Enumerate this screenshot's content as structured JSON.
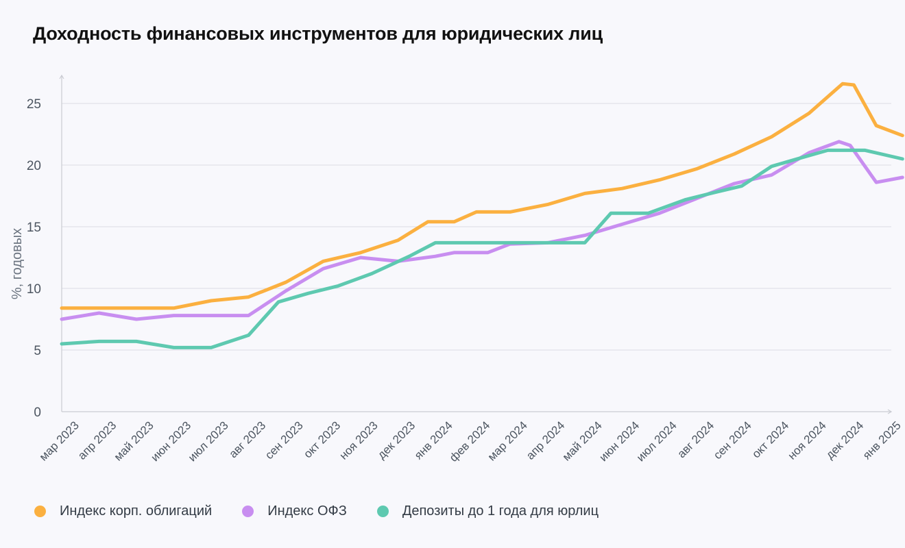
{
  "title": "Доходность финансовых инструментов для юридических лиц",
  "chart_data": {
    "type": "line",
    "ylabel": "%, годовых",
    "ylim": [
      0,
      27
    ],
    "yticks": [
      0,
      5,
      10,
      15,
      20,
      25
    ],
    "grid": true,
    "legend_position": "bottom",
    "categories": [
      "мар 2023",
      "апр 2023",
      "май 2023",
      "июн 2023",
      "июл 2023",
      "авг 2023",
      "сен 2023",
      "окт 2023",
      "ноя 2023",
      "дек 2023",
      "янв 2024",
      "фев 2024",
      "мар 2024",
      "апр 2024",
      "май 2024",
      "июн 2024",
      "июл 2024",
      "авг 2024",
      "сен 2024",
      "окт 2024",
      "ноя 2024",
      "дек 2024",
      "янв 2025"
    ],
    "series": [
      {
        "name": "Индекс корп. облигаций",
        "color": "#fbb040",
        "points": [
          [
            0,
            8.4
          ],
          [
            1,
            8.4
          ],
          [
            2,
            8.4
          ],
          [
            3,
            8.4
          ],
          [
            4,
            9.0
          ],
          [
            5,
            9.3
          ],
          [
            6,
            10.5
          ],
          [
            7,
            12.2
          ],
          [
            8,
            12.9
          ],
          [
            9,
            13.9
          ],
          [
            9.8,
            15.4
          ],
          [
            10.5,
            15.4
          ],
          [
            11.1,
            16.2
          ],
          [
            12,
            16.2
          ],
          [
            13,
            16.8
          ],
          [
            14,
            17.7
          ],
          [
            15,
            18.1
          ],
          [
            16,
            18.8
          ],
          [
            17,
            19.7
          ],
          [
            18,
            20.9
          ],
          [
            19,
            22.3
          ],
          [
            20,
            24.2
          ],
          [
            20.9,
            26.6
          ],
          [
            21.2,
            26.5
          ],
          [
            21.8,
            23.2
          ],
          [
            22.5,
            22.4
          ]
        ]
      },
      {
        "name": "Индекс ОФЗ",
        "color": "#c88ef0",
        "points": [
          [
            0,
            7.5
          ],
          [
            1,
            8.0
          ],
          [
            2,
            7.5
          ],
          [
            3,
            7.8
          ],
          [
            4,
            7.8
          ],
          [
            5,
            7.8
          ],
          [
            6,
            9.8
          ],
          [
            7,
            11.6
          ],
          [
            8,
            12.5
          ],
          [
            9,
            12.2
          ],
          [
            10,
            12.6
          ],
          [
            10.5,
            12.9
          ],
          [
            11.4,
            12.9
          ],
          [
            12,
            13.6
          ],
          [
            13,
            13.7
          ],
          [
            14,
            14.3
          ],
          [
            15,
            15.2
          ],
          [
            16,
            16.1
          ],
          [
            17,
            17.3
          ],
          [
            18,
            18.5
          ],
          [
            19,
            19.2
          ],
          [
            20,
            21.0
          ],
          [
            20.8,
            21.9
          ],
          [
            21.1,
            21.6
          ],
          [
            21.8,
            18.6
          ],
          [
            22.5,
            19.0
          ]
        ]
      },
      {
        "name": "Депозиты до 1 года для юрлиц",
        "color": "#5ec9b0",
        "points": [
          [
            0,
            5.5
          ],
          [
            1,
            5.7
          ],
          [
            2,
            5.7
          ],
          [
            3,
            5.2
          ],
          [
            4,
            5.2
          ],
          [
            5,
            6.2
          ],
          [
            5.8,
            8.9
          ],
          [
            6.6,
            9.6
          ],
          [
            7.4,
            10.2
          ],
          [
            8.3,
            11.2
          ],
          [
            9.3,
            12.6
          ],
          [
            10,
            13.7
          ],
          [
            11,
            13.7
          ],
          [
            12,
            13.7
          ],
          [
            13,
            13.7
          ],
          [
            14,
            13.7
          ],
          [
            14.7,
            16.1
          ],
          [
            15.7,
            16.1
          ],
          [
            16.7,
            17.2
          ],
          [
            17.5,
            17.8
          ],
          [
            18.2,
            18.3
          ],
          [
            19,
            19.9
          ],
          [
            19.8,
            20.6
          ],
          [
            20.5,
            21.2
          ],
          [
            21.5,
            21.2
          ],
          [
            22.5,
            20.5
          ]
        ]
      }
    ]
  }
}
